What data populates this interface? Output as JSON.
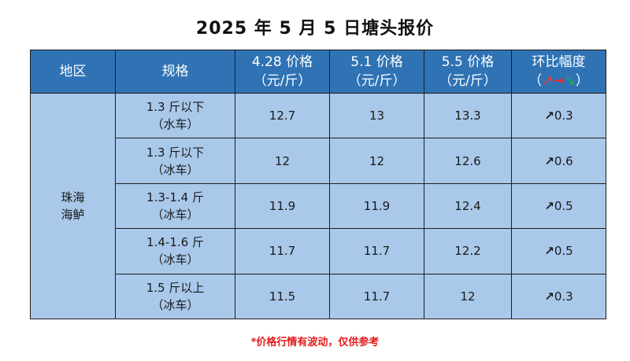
{
  "title": "2025 年 5 月 5 日塘头报价",
  "headers": {
    "region": "地区",
    "spec": "规格",
    "price1_line1": "4.28 价格",
    "price1_line2": "（元/斤）",
    "price2_line1": "5.1 价格",
    "price2_line2": "（元/斤）",
    "price3_line1": "5.5 价格",
    "price3_line2": "（元/斤）",
    "change_line1": "环比幅度",
    "change_open": "（",
    "change_close": "）"
  },
  "region": {
    "line1": "珠海",
    "line2": "海鲈"
  },
  "rows": [
    {
      "spec_line1": "1.3 斤以下",
      "spec_line2": "（水车）",
      "p428": "12.7",
      "p51": "13",
      "p55": "13.3",
      "change": "0.3",
      "direction": "up"
    },
    {
      "spec_line1": "1.3 斤以下",
      "spec_line2": "（冰车）",
      "p428": "12",
      "p51": "12",
      "p55": "12.6",
      "change": "0.6",
      "direction": "up"
    },
    {
      "spec_line1": "1.3-1.4 斤",
      "spec_line2": "（冰车）",
      "p428": "11.9",
      "p51": "11.9",
      "p55": "12.4",
      "change": "0.5",
      "direction": "up"
    },
    {
      "spec_line1": "1.4-1.6 斤",
      "spec_line2": "（冰车）",
      "p428": "11.7",
      "p51": "11.7",
      "p55": "12.2",
      "change": "0.5",
      "direction": "up"
    },
    {
      "spec_line1": "1.5 斤以上",
      "spec_line2": "（冰车）",
      "p428": "11.5",
      "p51": "11.7",
      "p55": "12",
      "change": "0.3",
      "direction": "up"
    }
  ],
  "note": "*价格行情有波动，仅供参考",
  "colors": {
    "header_bg": "#2f73b5",
    "cell_bg": "#a9c8ea",
    "up": "#e02020",
    "flat": "#ff2020",
    "down": "#2fb030",
    "note": "#e21b1b"
  },
  "icons": {
    "up": "arrow-up-right-icon",
    "flat": "arrow-right-icon",
    "down": "arrow-down-right-icon"
  }
}
